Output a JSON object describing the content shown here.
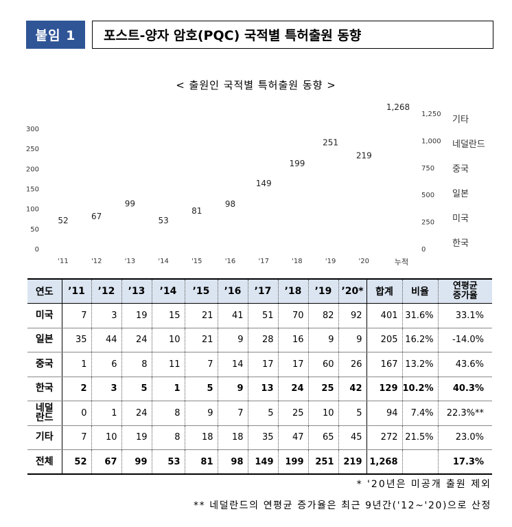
{
  "header": {
    "badge": "붙임 1",
    "title": "포스트-양자 암호(PQC) 국적별 특허출원 동향"
  },
  "chart_data": {
    "type": "line",
    "title": "< 출원인 국적별 특허출원 동향 >",
    "categories": [
      "'11",
      "'12",
      "'13",
      "'14",
      "'15",
      "'16",
      "'17",
      "'18",
      "'19",
      "'20"
    ],
    "values": [
      52,
      67,
      99,
      53,
      81,
      98,
      149,
      199,
      251,
      219
    ],
    "ylim": [
      0,
      300
    ],
    "y_ticks": [
      "0",
      "50",
      "100",
      "150",
      "200",
      "250",
      "300"
    ],
    "cumulative": {
      "label": "누적",
      "value": 1268,
      "value_label": "1,268",
      "ylim": [
        0,
        1250
      ],
      "y_ticks": [
        "0",
        "250",
        "500",
        "750",
        "1,000",
        "1,250"
      ]
    },
    "legend": [
      "기타",
      "네덜란드",
      "중국",
      "일본",
      "미국",
      "한국"
    ]
  },
  "table": {
    "headers": [
      "연도",
      "’11",
      "’12",
      "’13",
      "’14",
      "’15",
      "’16",
      "’17",
      "’18",
      "’19",
      "’20*",
      "합계",
      "비율"
    ],
    "header_last": [
      "연평균",
      "증가율"
    ],
    "rows": [
      {
        "label": "미국",
        "cells": [
          "7",
          "3",
          "19",
          "15",
          "21",
          "41",
          "51",
          "70",
          "82",
          "92",
          "401",
          "31.6%",
          "33.1%"
        ]
      },
      {
        "label": "일본",
        "cells": [
          "35",
          "44",
          "24",
          "10",
          "21",
          "9",
          "28",
          "16",
          "9",
          "9",
          "205",
          "16.2%",
          "-14.0%"
        ]
      },
      {
        "label": "중국",
        "cells": [
          "1",
          "6",
          "8",
          "11",
          "7",
          "14",
          "17",
          "17",
          "60",
          "26",
          "167",
          "13.2%",
          "43.6%"
        ]
      },
      {
        "label": "한국",
        "cells": [
          "2",
          "3",
          "5",
          "1",
          "5",
          "9",
          "13",
          "24",
          "25",
          "42",
          "129",
          "10.2%",
          "40.3%"
        ]
      },
      {
        "label_top": "네덜",
        "label_bottom": "란드",
        "cells": [
          "0",
          "1",
          "24",
          "8",
          "9",
          "7",
          "5",
          "25",
          "10",
          "5",
          "94",
          "7.4%",
          "22.3%**"
        ]
      },
      {
        "label": "기타",
        "cells": [
          "7",
          "10",
          "19",
          "8",
          "18",
          "18",
          "35",
          "47",
          "65",
          "45",
          "272",
          "21.5%",
          "23.0%"
        ]
      },
      {
        "label": "전체",
        "cells": [
          "52",
          "67",
          "99",
          "53",
          "81",
          "98",
          "149",
          "199",
          "251",
          "219",
          "1,268",
          "",
          "17.3%"
        ]
      }
    ]
  },
  "notes": [
    "* '20년은 미공개 출원 제외",
    "** 네덜란드의 연평균 증가율은 최근 9년간('12~'20)으로 산정"
  ]
}
